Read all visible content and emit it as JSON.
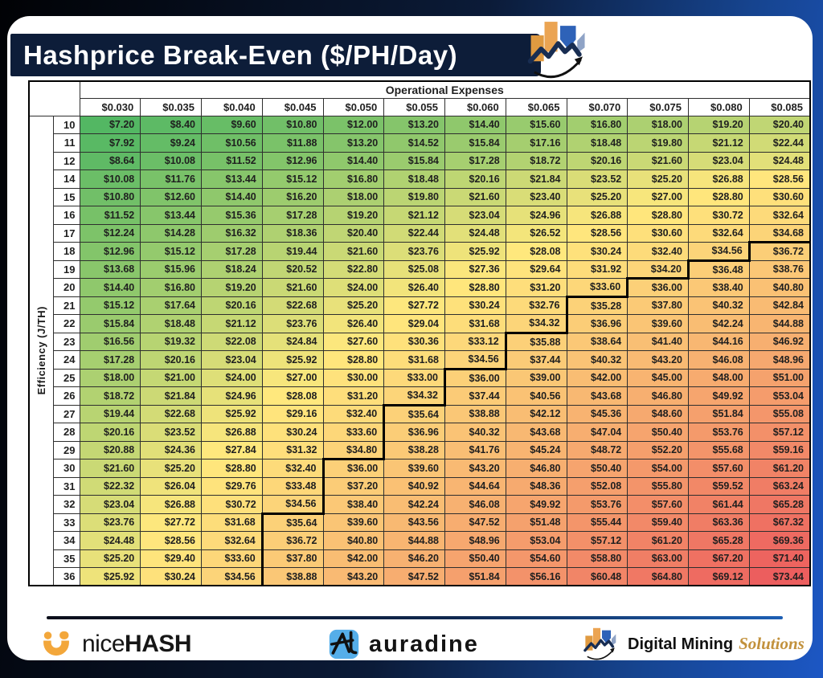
{
  "header": {
    "title": "Hashprice Break-Even ($/PH/Day)"
  },
  "table": {
    "col_group_label": "Operational Expenses",
    "row_axis_label": "Efficiency (J/TH)",
    "columns": [
      "$0.030",
      "$0.035",
      "$0.040",
      "$0.045",
      "$0.050",
      "$0.055",
      "$0.060",
      "$0.065",
      "$0.070",
      "$0.075",
      "$0.080",
      "$0.085"
    ],
    "rows": [
      10,
      11,
      12,
      14,
      15,
      16,
      17,
      18,
      19,
      20,
      21,
      22,
      23,
      24,
      25,
      26,
      27,
      28,
      29,
      30,
      31,
      32,
      33,
      34,
      35,
      36
    ]
  },
  "chart_data": {
    "type": "heatmap",
    "title": "Hashprice Break-Even ($/PH/Day)",
    "xlabel": "Operational Expenses",
    "ylabel": "Efficiency (J/TH)",
    "x": [
      0.03,
      0.035,
      0.04,
      0.045,
      0.05,
      0.055,
      0.06,
      0.065,
      0.07,
      0.075,
      0.08,
      0.085
    ],
    "y": [
      10,
      11,
      12,
      14,
      15,
      16,
      17,
      18,
      19,
      20,
      21,
      22,
      23,
      24,
      25,
      26,
      27,
      28,
      29,
      30,
      31,
      32,
      33,
      34,
      35,
      36
    ],
    "values": [
      [
        7.2,
        8.4,
        9.6,
        10.8,
        12.0,
        13.2,
        14.4,
        15.6,
        16.8,
        18.0,
        19.2,
        20.4
      ],
      [
        7.92,
        9.24,
        10.56,
        11.88,
        13.2,
        14.52,
        15.84,
        17.16,
        18.48,
        19.8,
        21.12,
        22.44
      ],
      [
        8.64,
        10.08,
        11.52,
        12.96,
        14.4,
        15.84,
        17.28,
        18.72,
        20.16,
        21.6,
        23.04,
        24.48
      ],
      [
        10.08,
        11.76,
        13.44,
        15.12,
        16.8,
        18.48,
        20.16,
        21.84,
        23.52,
        25.2,
        26.88,
        28.56
      ],
      [
        10.8,
        12.6,
        14.4,
        16.2,
        18.0,
        19.8,
        21.6,
        23.4,
        25.2,
        27.0,
        28.8,
        30.6
      ],
      [
        11.52,
        13.44,
        15.36,
        17.28,
        19.2,
        21.12,
        23.04,
        24.96,
        26.88,
        28.8,
        30.72,
        32.64
      ],
      [
        12.24,
        14.28,
        16.32,
        18.36,
        20.4,
        22.44,
        24.48,
        26.52,
        28.56,
        30.6,
        32.64,
        34.68
      ],
      [
        12.96,
        15.12,
        17.28,
        19.44,
        21.6,
        23.76,
        25.92,
        28.08,
        30.24,
        32.4,
        34.56,
        36.72
      ],
      [
        13.68,
        15.96,
        18.24,
        20.52,
        22.8,
        25.08,
        27.36,
        29.64,
        31.92,
        34.2,
        36.48,
        38.76
      ],
      [
        14.4,
        16.8,
        19.2,
        21.6,
        24.0,
        26.4,
        28.8,
        31.2,
        33.6,
        36.0,
        38.4,
        40.8
      ],
      [
        15.12,
        17.64,
        20.16,
        22.68,
        25.2,
        27.72,
        30.24,
        32.76,
        35.28,
        37.8,
        40.32,
        42.84
      ],
      [
        15.84,
        18.48,
        21.12,
        23.76,
        26.4,
        29.04,
        31.68,
        34.32,
        36.96,
        39.6,
        42.24,
        44.88
      ],
      [
        16.56,
        19.32,
        22.08,
        24.84,
        27.6,
        30.36,
        33.12,
        35.88,
        38.64,
        41.4,
        44.16,
        46.92
      ],
      [
        17.28,
        20.16,
        23.04,
        25.92,
        28.8,
        31.68,
        34.56,
        37.44,
        40.32,
        43.2,
        46.08,
        48.96
      ],
      [
        18.0,
        21.0,
        24.0,
        27.0,
        30.0,
        33.0,
        36.0,
        39.0,
        42.0,
        45.0,
        48.0,
        51.0
      ],
      [
        18.72,
        21.84,
        24.96,
        28.08,
        31.2,
        34.32,
        37.44,
        40.56,
        43.68,
        46.8,
        49.92,
        53.04
      ],
      [
        19.44,
        22.68,
        25.92,
        29.16,
        32.4,
        35.64,
        38.88,
        42.12,
        45.36,
        48.6,
        51.84,
        55.08
      ],
      [
        20.16,
        23.52,
        26.88,
        30.24,
        33.6,
        36.96,
        40.32,
        43.68,
        47.04,
        50.4,
        53.76,
        57.12
      ],
      [
        20.88,
        24.36,
        27.84,
        31.32,
        34.8,
        38.28,
        41.76,
        45.24,
        48.72,
        52.2,
        55.68,
        59.16
      ],
      [
        21.6,
        25.2,
        28.8,
        32.4,
        36.0,
        39.6,
        43.2,
        46.8,
        50.4,
        54.0,
        57.6,
        61.2
      ],
      [
        22.32,
        26.04,
        29.76,
        33.48,
        37.2,
        40.92,
        44.64,
        48.36,
        52.08,
        55.8,
        59.52,
        63.24
      ],
      [
        23.04,
        26.88,
        30.72,
        34.56,
        38.4,
        42.24,
        46.08,
        49.92,
        53.76,
        57.6,
        61.44,
        65.28
      ],
      [
        23.76,
        27.72,
        31.68,
        35.64,
        39.6,
        43.56,
        47.52,
        51.48,
        55.44,
        59.4,
        63.36,
        67.32
      ],
      [
        24.48,
        28.56,
        32.64,
        36.72,
        40.8,
        44.88,
        48.96,
        53.04,
        57.12,
        61.2,
        65.28,
        69.36
      ],
      [
        25.2,
        29.4,
        33.6,
        37.8,
        42.0,
        46.2,
        50.4,
        54.6,
        58.8,
        63.0,
        67.2,
        71.4
      ],
      [
        25.92,
        30.24,
        34.56,
        38.88,
        43.2,
        47.52,
        51.84,
        56.16,
        60.48,
        64.8,
        69.12,
        73.44
      ]
    ],
    "value_prefix": "$",
    "breakeven_line": {
      "threshold": 35,
      "style": "thick black step line between cells below and at/above threshold"
    },
    "colorscale": {
      "min_value": 7.2,
      "min_color": "#53B763",
      "mid_value": 28.0,
      "mid_color": "#FFE87D",
      "max_value": 73.44,
      "max_color": "#EC5E5E"
    },
    "legend_position": "none",
    "grid": true
  },
  "footer": {
    "logos": {
      "nicehash": {
        "name": "NiceHash",
        "text_regular": "nice",
        "text_bold": "HASH"
      },
      "auradine": {
        "name": "Auradine",
        "text": "auradine"
      },
      "dms": {
        "name": "Digital Mining Solutions",
        "text_primary": "Digital Mining",
        "text_accent": "Solutions"
      }
    }
  },
  "colors": {
    "title_bar": "#0D1D39",
    "frame_dark": "#010205",
    "frame_navy": "#0B1B38",
    "frame_blue": "#1C57C4",
    "step_line": "#000000",
    "logo_orange": "#EBA452",
    "logo_blue": "#2E62B8",
    "logo_zigzag_navy": "#182D52",
    "nicehash_orange": "#F3A73B",
    "auradine_blue": "#55AEE9",
    "solutions_gold": "#C2913C"
  }
}
